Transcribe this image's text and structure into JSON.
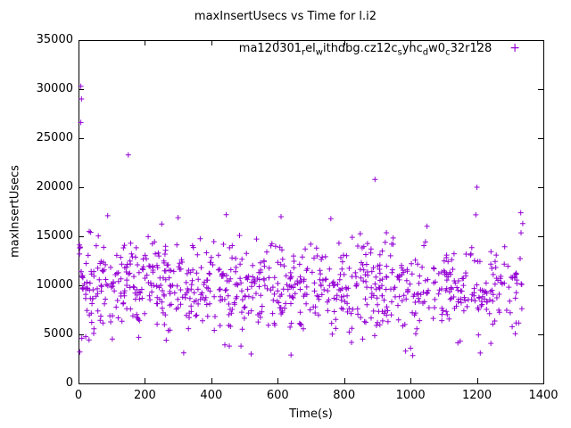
{
  "chart_data": {
    "type": "scatter",
    "title": "maxInsertUsecs vs Time for l.i2",
    "xlabel": "Time(s)",
    "ylabel": "maxInsertUsecs",
    "xlim": [
      0,
      1400
    ],
    "ylim": [
      0,
      35000
    ],
    "xticks": [
      0,
      200,
      400,
      600,
      800,
      1000,
      1200,
      1400
    ],
    "yticks": [
      0,
      5000,
      10000,
      15000,
      20000,
      25000,
      30000,
      35000
    ],
    "grid": false,
    "axis_color": "#000000",
    "marker": {
      "shape": "plus",
      "color": "#9400d3",
      "size": 7
    },
    "legend": {
      "position": "top-center-inside",
      "label_plain": "ma120301_rel_withdbg.cz12c_sync_dw0_c32r128",
      "marker_glyph": "+",
      "segments": [
        {
          "text": "ma120301",
          "sub": false
        },
        {
          "text": "r",
          "sub": true
        },
        {
          "text": "el",
          "sub": false
        },
        {
          "text": "w",
          "sub": true
        },
        {
          "text": "ithdbg.cz12c",
          "sub": false
        },
        {
          "text": "s",
          "sub": true
        },
        {
          "text": "ync",
          "sub": false
        },
        {
          "text": "d",
          "sub": true
        },
        {
          "text": "w0",
          "sub": false
        },
        {
          "text": "c",
          "sub": true
        },
        {
          "text": "32r128",
          "sub": false
        }
      ]
    },
    "cloud": {
      "n": 860,
      "x_min": 2,
      "x_max": 1340,
      "y_mean": 9800,
      "y_sd": 2400,
      "y_min": 2800,
      "y_max": 17500,
      "seed": 7
    },
    "outlier_points": [
      [
        7,
        30300
      ],
      [
        9,
        29000
      ],
      [
        7,
        26600
      ],
      [
        5,
        13900
      ],
      [
        10,
        4600
      ],
      [
        4,
        3200
      ],
      [
        150,
        23300
      ],
      [
        893,
        20800
      ],
      [
        1200,
        20000
      ],
      [
        88,
        17100
      ],
      [
        300,
        16900
      ],
      [
        445,
        17200
      ],
      [
        610,
        17000
      ],
      [
        760,
        16800
      ],
      [
        1332,
        17400
      ],
      [
        1338,
        16300
      ],
      [
        520,
        3000
      ],
      [
        1210,
        3100
      ],
      [
        640,
        2900
      ],
      [
        985,
        3300
      ]
    ]
  }
}
